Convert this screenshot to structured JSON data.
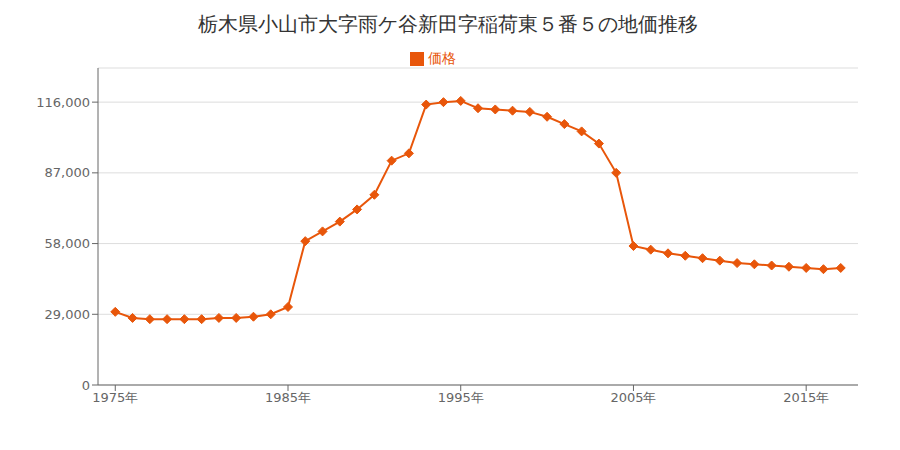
{
  "chart_data": {
    "type": "line",
    "title": "栃木県小山市大字雨ケ谷新田字稲荷東５番５の地価推移",
    "x": [
      1975,
      1976,
      1977,
      1978,
      1979,
      1980,
      1981,
      1982,
      1983,
      1984,
      1985,
      1986,
      1987,
      1988,
      1989,
      1990,
      1991,
      1992,
      1993,
      1994,
      1995,
      1996,
      1997,
      1998,
      1999,
      2000,
      2001,
      2002,
      2003,
      2004,
      2005,
      2006,
      2007,
      2008,
      2009,
      2010,
      2011,
      2012,
      2013,
      2014,
      2015,
      2016,
      2017
    ],
    "series": [
      {
        "name": "価格",
        "color": "#E8560A",
        "marker": "diamond",
        "values": [
          30000,
          27500,
          27000,
          27000,
          27000,
          27000,
          27500,
          27500,
          28000,
          29000,
          32000,
          59000,
          63000,
          67000,
          72000,
          78000,
          92000,
          95000,
          115000,
          116000,
          116500,
          113500,
          113000,
          112500,
          112000,
          110000,
          107000,
          104000,
          99000,
          87000,
          57000,
          55500,
          54000,
          53000,
          52000,
          51000,
          50000,
          49500,
          49000,
          48500,
          48000,
          47500,
          48000
        ]
      }
    ],
    "xlim": [
      1974,
      2018
    ],
    "xticks": [
      {
        "value": 1975,
        "label": "1975年"
      },
      {
        "value": 1985,
        "label": "1985年"
      },
      {
        "value": 1995,
        "label": "1995年"
      },
      {
        "value": 2005,
        "label": "2005年"
      },
      {
        "value": 2015,
        "label": "2015年"
      }
    ],
    "ylim": [
      0,
      130000
    ],
    "yticks": [
      0,
      {
        "value": 29000,
        "label": "29,000"
      },
      {
        "value": 58000,
        "label": "58,000"
      },
      {
        "value": 87000,
        "label": "87,000"
      },
      {
        "value": 116000,
        "label": "116,000"
      }
    ],
    "grid": "y",
    "legend": "top"
  }
}
